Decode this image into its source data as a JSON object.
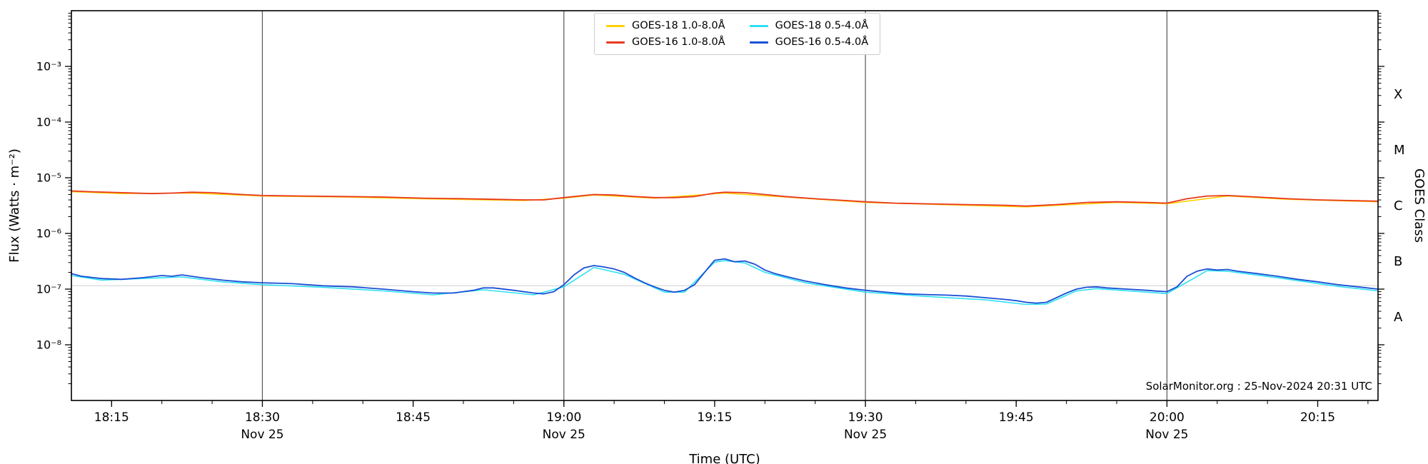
{
  "chart_data": {
    "type": "line",
    "title": "",
    "xlabel": "Time (UTC)",
    "ylabel": "Flux (Watts · m⁻²)",
    "right_axis_label": "GOES Class",
    "x_unit": "minutes_since_18:00_UTC",
    "xlim": [
      11,
      141
    ],
    "y_log_exponent_range": [
      -2,
      -9
    ],
    "grid": "vertical lines at labeled half-hours, faint horizontal reference line",
    "legend_position": "top-center",
    "x_ticks": [
      {
        "t": 15,
        "label": "18:15"
      },
      {
        "t": 30,
        "label": "18:30"
      },
      {
        "t": 45,
        "label": "18:45"
      },
      {
        "t": 60,
        "label": "19:00"
      },
      {
        "t": 75,
        "label": "19:15"
      },
      {
        "t": 90,
        "label": "19:30"
      },
      {
        "t": 105,
        "label": "19:45"
      },
      {
        "t": 120,
        "label": "20:00"
      },
      {
        "t": 135,
        "label": "20:15"
      }
    ],
    "x_day_labels": [
      {
        "t": 30,
        "label": "Nov 25"
      },
      {
        "t": 60,
        "label": "Nov 25"
      },
      {
        "t": 90,
        "label": "Nov 25"
      },
      {
        "t": 120,
        "label": "Nov 25"
      }
    ],
    "x_minor_tick_step_minutes": 5,
    "y_ticks": [
      {
        "exp": -3,
        "label": "10⁻³"
      },
      {
        "exp": -4,
        "label": "10⁻⁴"
      },
      {
        "exp": -5,
        "label": "10⁻⁵"
      },
      {
        "exp": -6,
        "label": "10⁻⁶"
      },
      {
        "exp": -7,
        "label": "10⁻⁷"
      },
      {
        "exp": -8,
        "label": "10⁻⁸"
      }
    ],
    "goes_class_labels": [
      {
        "exp": -3.5,
        "label": "X"
      },
      {
        "exp": -4.5,
        "label": "M"
      },
      {
        "exp": -5.5,
        "label": "C"
      },
      {
        "exp": -6.5,
        "label": "B"
      },
      {
        "exp": -7.5,
        "label": "A"
      }
    ],
    "vlines_t": [
      30,
      60,
      90,
      120
    ],
    "hline_flux": 1.15e-07,
    "colors": {
      "goes18_long": "#ffd100",
      "goes16_long": "#e8391f",
      "goes18_short": "#2ee0f2",
      "goes16_short": "#1a4fd6",
      "vline": "#555555",
      "hline": "#cfcfcf",
      "frame": "#000000"
    },
    "series": [
      {
        "name": "GOES-18 1.0-8.0Å",
        "color": "#ffd100",
        "width": 1.6,
        "points": [
          [
            11,
            5.6e-06
          ],
          [
            16,
            5.2e-06
          ],
          [
            23,
            5.3e-06
          ],
          [
            30,
            4.7e-06
          ],
          [
            38,
            4.5e-06
          ],
          [
            46,
            4.2e-06
          ],
          [
            56,
            3.9e-06
          ],
          [
            60,
            4.3e-06
          ],
          [
            63,
            4.9e-06
          ],
          [
            69,
            4.3e-06
          ],
          [
            76,
            5.3e-06
          ],
          [
            82,
            4.5e-06
          ],
          [
            90,
            3.6e-06
          ],
          [
            100,
            3.2e-06
          ],
          [
            106,
            3e-06
          ],
          [
            115,
            3.6e-06
          ],
          [
            120,
            3.4e-06
          ],
          [
            126,
            4.7e-06
          ],
          [
            132,
            4.1e-06
          ],
          [
            141,
            3.7e-06
          ]
        ]
      },
      {
        "name": "GOES-16 1.0-8.0Å",
        "color": "#e8391f",
        "width": 1.8,
        "points": [
          [
            11,
            5.8e-06
          ],
          [
            13,
            5.6e-06
          ],
          [
            16,
            5.4e-06
          ],
          [
            19,
            5.2e-06
          ],
          [
            21,
            5.3e-06
          ],
          [
            23,
            5.5e-06
          ],
          [
            25,
            5.4e-06
          ],
          [
            28,
            5e-06
          ],
          [
            30,
            4.8e-06
          ],
          [
            34,
            4.7e-06
          ],
          [
            38,
            4.6e-06
          ],
          [
            42,
            4.5e-06
          ],
          [
            46,
            4.3e-06
          ],
          [
            50,
            4.2e-06
          ],
          [
            53,
            4.1e-06
          ],
          [
            56,
            4e-06
          ],
          [
            58,
            4e-06
          ],
          [
            60,
            4.4e-06
          ],
          [
            62,
            4.8e-06
          ],
          [
            63,
            5e-06
          ],
          [
            65,
            4.9e-06
          ],
          [
            67,
            4.6e-06
          ],
          [
            69,
            4.4e-06
          ],
          [
            71,
            4.4e-06
          ],
          [
            73,
            4.6e-06
          ],
          [
            75,
            5.3e-06
          ],
          [
            76,
            5.5e-06
          ],
          [
            78,
            5.4e-06
          ],
          [
            80,
            5e-06
          ],
          [
            82,
            4.6e-06
          ],
          [
            85,
            4.2e-06
          ],
          [
            88,
            3.9e-06
          ],
          [
            90,
            3.7e-06
          ],
          [
            93,
            3.5e-06
          ],
          [
            96,
            3.4e-06
          ],
          [
            100,
            3.3e-06
          ],
          [
            104,
            3.2e-06
          ],
          [
            106,
            3.1e-06
          ],
          [
            109,
            3.3e-06
          ],
          [
            112,
            3.6e-06
          ],
          [
            115,
            3.7e-06
          ],
          [
            118,
            3.6e-06
          ],
          [
            120,
            3.5e-06
          ],
          [
            122,
            4.2e-06
          ],
          [
            124,
            4.7e-06
          ],
          [
            126,
            4.8e-06
          ],
          [
            129,
            4.5e-06
          ],
          [
            132,
            4.2e-06
          ],
          [
            135,
            4e-06
          ],
          [
            138,
            3.9e-06
          ],
          [
            141,
            3.8e-06
          ]
        ]
      },
      {
        "name": "GOES-18 0.5-4.0Å",
        "color": "#2ee0f2",
        "width": 1.6,
        "points": [
          [
            11,
            1.75e-07
          ],
          [
            14,
            1.45e-07
          ],
          [
            20,
            1.6e-07
          ],
          [
            22,
            1.65e-07
          ],
          [
            26,
            1.35e-07
          ],
          [
            30,
            1.2e-07
          ],
          [
            36,
            1.08e-07
          ],
          [
            42,
            9.3e-08
          ],
          [
            47,
            7.9e-08
          ],
          [
            52,
            9.7e-08
          ],
          [
            57,
            7.9e-08
          ],
          [
            60,
            1.1e-07
          ],
          [
            63,
            2.45e-07
          ],
          [
            66,
            1.85e-07
          ],
          [
            70,
            8.8e-08
          ],
          [
            72,
            8.8e-08
          ],
          [
            75,
            3.05e-07
          ],
          [
            76,
            3.25e-07
          ],
          [
            78,
            2.95e-07
          ],
          [
            80,
            2e-07
          ],
          [
            84,
            1.3e-07
          ],
          [
            90,
            8.8e-08
          ],
          [
            96,
            7.4e-08
          ],
          [
            102,
            6.4e-08
          ],
          [
            106,
            5.3e-08
          ],
          [
            108,
            5.4e-08
          ],
          [
            111,
            9.3e-08
          ],
          [
            113,
            1.02e-07
          ],
          [
            118,
            8.8e-08
          ],
          [
            120,
            8.3e-08
          ],
          [
            124,
            2.15e-07
          ],
          [
            126,
            2.1e-07
          ],
          [
            131,
            1.6e-07
          ],
          [
            137,
            1.12e-07
          ],
          [
            141,
            9.3e-08
          ]
        ]
      },
      {
        "name": "GOES-16 0.5-4.0Å",
        "color": "#1a4fd6",
        "width": 1.8,
        "points": [
          [
            11,
            1.9e-07
          ],
          [
            12,
            1.7e-07
          ],
          [
            14,
            1.55e-07
          ],
          [
            16,
            1.5e-07
          ],
          [
            18,
            1.6e-07
          ],
          [
            20,
            1.75e-07
          ],
          [
            21,
            1.7e-07
          ],
          [
            22,
            1.8e-07
          ],
          [
            24,
            1.6e-07
          ],
          [
            26,
            1.45e-07
          ],
          [
            28,
            1.35e-07
          ],
          [
            30,
            1.3e-07
          ],
          [
            33,
            1.25e-07
          ],
          [
            36,
            1.15e-07
          ],
          [
            39,
            1.1e-07
          ],
          [
            42,
            1e-07
          ],
          [
            45,
            9e-08
          ],
          [
            47,
            8.5e-08
          ],
          [
            49,
            8.5e-08
          ],
          [
            51,
            9.5e-08
          ],
          [
            52,
            1.05e-07
          ],
          [
            53,
            1.05e-07
          ],
          [
            55,
            9.5e-08
          ],
          [
            57,
            8.5e-08
          ],
          [
            58,
            8.2e-08
          ],
          [
            59,
            9e-08
          ],
          [
            60,
            1.2e-07
          ],
          [
            61,
            1.8e-07
          ],
          [
            62,
            2.4e-07
          ],
          [
            63,
            2.65e-07
          ],
          [
            64,
            2.5e-07
          ],
          [
            65,
            2.3e-07
          ],
          [
            66,
            2e-07
          ],
          [
            67,
            1.6e-07
          ],
          [
            68,
            1.3e-07
          ],
          [
            69,
            1.1e-07
          ],
          [
            70,
            9.5e-08
          ],
          [
            71,
            8.8e-08
          ],
          [
            72,
            9.5e-08
          ],
          [
            73,
            1.2e-07
          ],
          [
            74,
            2e-07
          ],
          [
            75,
            3.3e-07
          ],
          [
            76,
            3.5e-07
          ],
          [
            77,
            3.1e-07
          ],
          [
            78,
            3.2e-07
          ],
          [
            79,
            2.8e-07
          ],
          [
            80,
            2.2e-07
          ],
          [
            81,
            1.9e-07
          ],
          [
            82,
            1.7e-07
          ],
          [
            84,
            1.4e-07
          ],
          [
            86,
            1.2e-07
          ],
          [
            88,
            1.05e-07
          ],
          [
            90,
            9.5e-08
          ],
          [
            92,
            8.8e-08
          ],
          [
            94,
            8.2e-08
          ],
          [
            96,
            8e-08
          ],
          [
            98,
            7.8e-08
          ],
          [
            100,
            7.5e-08
          ],
          [
            102,
            7e-08
          ],
          [
            104,
            6.5e-08
          ],
          [
            105,
            6.2e-08
          ],
          [
            106,
            5.8e-08
          ],
          [
            107,
            5.6e-08
          ],
          [
            108,
            5.8e-08
          ],
          [
            109,
            7e-08
          ],
          [
            110,
            8.5e-08
          ],
          [
            111,
            1e-07
          ],
          [
            112,
            1.08e-07
          ],
          [
            113,
            1.1e-07
          ],
          [
            114,
            1.05e-07
          ],
          [
            116,
            1e-07
          ],
          [
            118,
            9.5e-08
          ],
          [
            119,
            9.2e-08
          ],
          [
            120,
            9e-08
          ],
          [
            121,
            1.1e-07
          ],
          [
            122,
            1.7e-07
          ],
          [
            123,
            2.1e-07
          ],
          [
            124,
            2.3e-07
          ],
          [
            125,
            2.2e-07
          ],
          [
            126,
            2.25e-07
          ],
          [
            127,
            2.1e-07
          ],
          [
            129,
            1.9e-07
          ],
          [
            131,
            1.7e-07
          ],
          [
            133,
            1.5e-07
          ],
          [
            135,
            1.35e-07
          ],
          [
            137,
            1.2e-07
          ],
          [
            139,
            1.1e-07
          ],
          [
            141,
            1e-07
          ]
        ]
      }
    ],
    "watermark": "SolarMonitor.org : 25-Nov-2024 20:31 UTC"
  }
}
